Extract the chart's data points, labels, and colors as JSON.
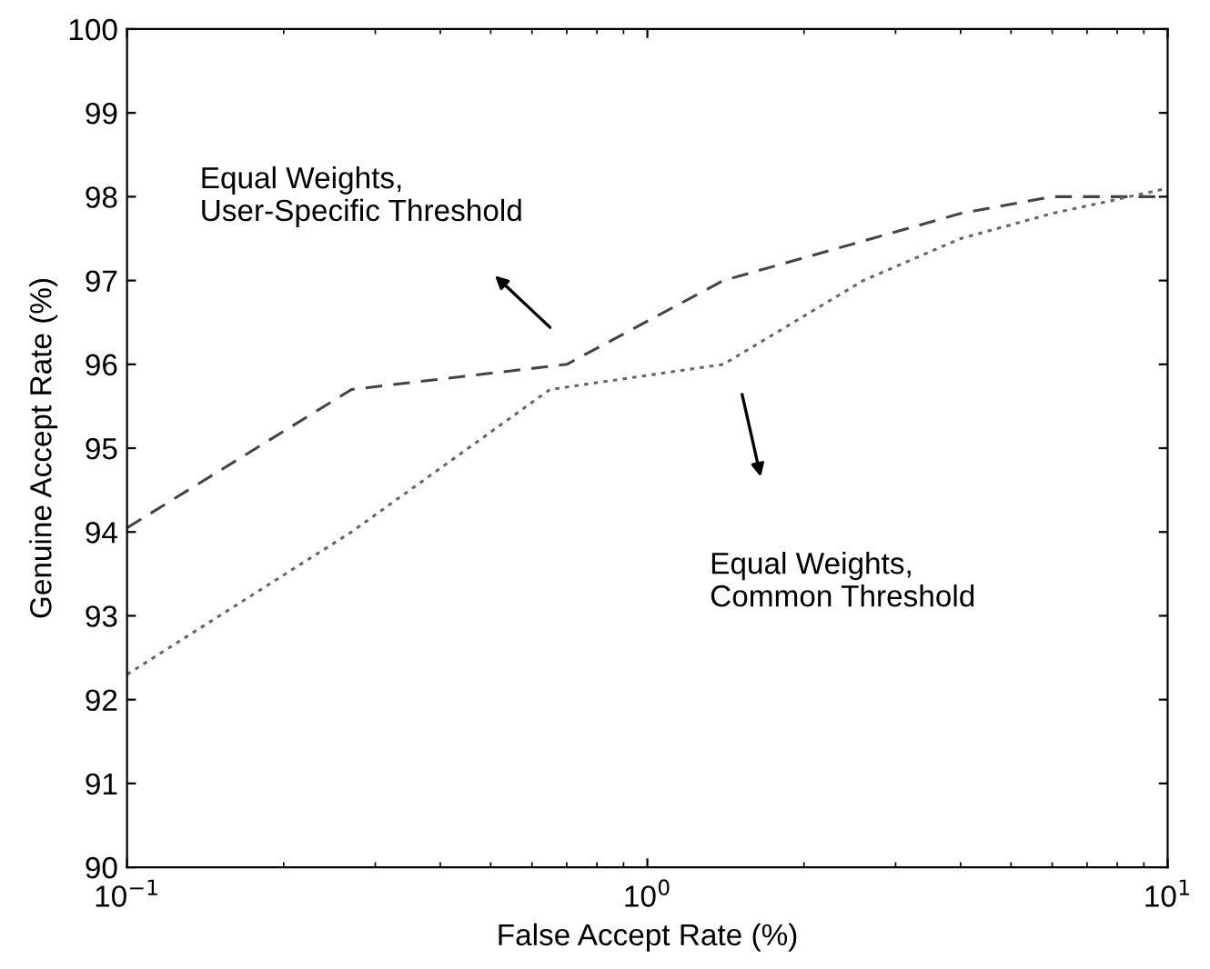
{
  "chart_data": {
    "type": "line",
    "xlabel": "False Accept Rate (%)",
    "ylabel": "Genuine Accept Rate (%)",
    "log": "x",
    "xlim": [
      0.1,
      10
    ],
    "ylim": [
      90,
      100
    ],
    "xticks": [
      {
        "value": 0.1,
        "label": "10$^{−1}$"
      },
      {
        "value": 1,
        "label": "10$^{0}$"
      },
      {
        "value": 10,
        "label": "10$^{1}$"
      }
    ],
    "yticks": [
      90,
      91,
      92,
      93,
      94,
      95,
      96,
      97,
      98,
      99,
      100
    ],
    "grid": false,
    "series": [
      {
        "color": "#444444",
        "line_style": "dashed",
        "x": [
          0.1,
          0.27,
          0.7,
          1.4,
          2.7,
          4,
          6,
          10
        ],
        "values": [
          94.05,
          95.7,
          96.0,
          97.0,
          97.5,
          97.8,
          98.0,
          98.0
        ]
      },
      {
        "color": "#666666",
        "line_style": "dotted",
        "x": [
          0.1,
          0.27,
          0.65,
          1.4,
          2.6,
          4,
          6,
          10
        ],
        "values": [
          92.3,
          94.0,
          95.7,
          96.0,
          97.0,
          97.5,
          97.8,
          98.1
        ]
      }
    ],
    "annotations": [
      "Equal Weights,\nUser-Specific Threshold",
      "Equal Weights,\nCommon Threshold"
    ]
  }
}
